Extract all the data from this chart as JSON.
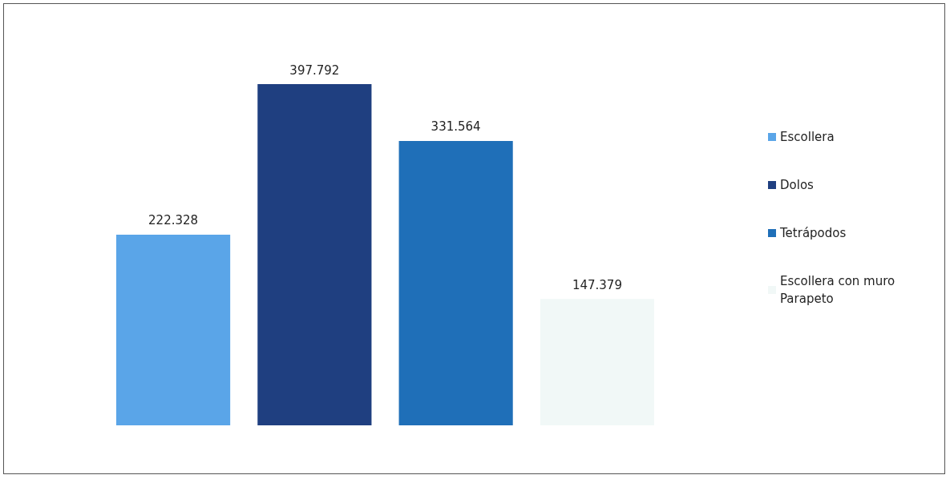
{
  "chart_data": {
    "type": "bar",
    "categories": [
      null
    ],
    "series": [
      {
        "name": "Escollera",
        "color": "#5aa5e8",
        "values": [
          222.328
        ]
      },
      {
        "name": "Dolos",
        "color": "#1f3f80",
        "values": [
          397.792
        ]
      },
      {
        "name": "Tetrápodos",
        "color": "#1f6fb8",
        "values": [
          331.564
        ]
      },
      {
        "name": "Escollera con muro Parapeto",
        "color": "#f1f8f7",
        "values": [
          147.379
        ]
      }
    ],
    "data_labels": true,
    "legend": "right",
    "grid": false
  }
}
